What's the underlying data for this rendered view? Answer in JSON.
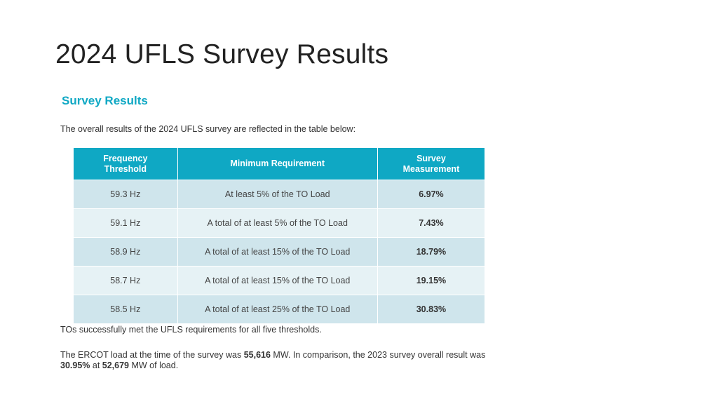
{
  "slide": {
    "title": "2024 UFLS Survey Results"
  },
  "content": {
    "heading": "Survey Results",
    "intro": "The overall results of the 2024 UFLS survey are reflected in the table below:",
    "note": "TOs successfully met the UFLS requirements for all five thresholds.",
    "summary": {
      "part1": "The ERCOT load at the time of the survey was ",
      "load_2024": "55,616",
      "part2": " MW. In comparison, the 2023 survey overall result was ",
      "result_2023": "30.95%",
      "part3": " at ",
      "load_2023": "52,679",
      "part4": " MW of load."
    }
  },
  "table": {
    "headers": {
      "freq_line1": "Frequency",
      "freq_line2": "Threshold",
      "requirement": "Minimum Requirement",
      "meas_line1": "Survey",
      "meas_line2": "Measurement"
    },
    "rows": [
      {
        "frequency": "59.3 Hz",
        "requirement": "At least 5% of the TO Load",
        "measurement": "6.97%"
      },
      {
        "frequency": "59.1 Hz",
        "requirement": "A total of at least 5% of the TO Load",
        "measurement": "7.43%"
      },
      {
        "frequency": "58.9 Hz",
        "requirement": "A total of at least 15% of the TO Load",
        "measurement": "18.79%"
      },
      {
        "frequency": "58.7 Hz",
        "requirement": "A total of at least 15% of the TO Load",
        "measurement": "19.15%"
      },
      {
        "frequency": "58.5 Hz",
        "requirement": "A total of at least 25% of the TO Load",
        "measurement": "30.83%"
      }
    ]
  },
  "colors": {
    "accent": "#0fa8c4",
    "row_dark": "#cfe5ec",
    "row_light": "#e6f2f5"
  }
}
